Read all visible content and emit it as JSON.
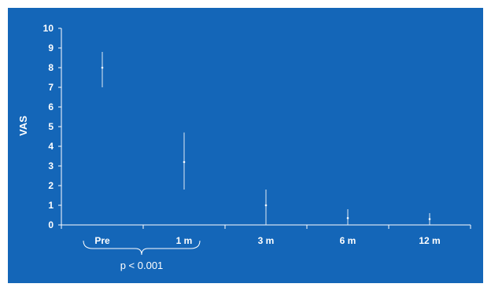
{
  "chart_data": {
    "type": "error-bar",
    "ylabel": "VAS",
    "xlabel": "",
    "ylim": [
      0,
      10
    ],
    "yticks": [
      "0",
      "1",
      "2",
      "3",
      "4",
      "5",
      "6",
      "7",
      "8",
      "9",
      "10"
    ],
    "categories": [
      "Pre",
      "1 m",
      "3 m",
      "6 m",
      "12 m"
    ],
    "series": [
      {
        "values": [
          8.0,
          3.2,
          1.0,
          0.35,
          0.3
        ],
        "low": [
          7.0,
          1.8,
          0.0,
          0.0,
          0.0
        ],
        "high": [
          8.8,
          4.7,
          1.8,
          0.8,
          0.6
        ]
      }
    ],
    "grid": false,
    "annotations": [
      {
        "text": "p < 0.001",
        "spans": [
          "Pre",
          "1 m"
        ]
      }
    ],
    "colors": {
      "background": "#1466b8",
      "foreground": "#ffffff"
    }
  }
}
